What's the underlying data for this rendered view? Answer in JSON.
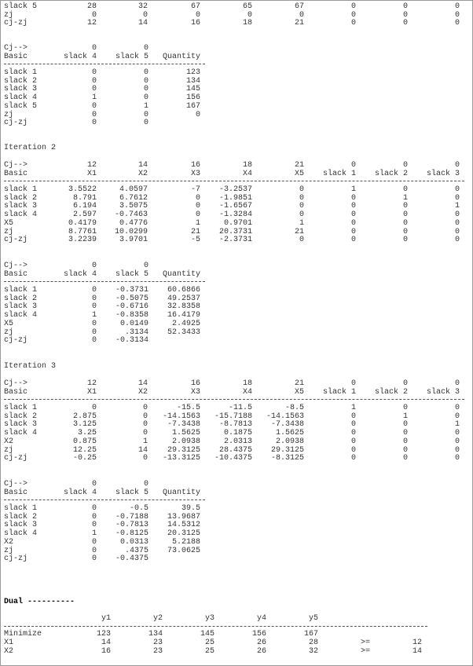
{
  "blocks": [
    {
      "body": [
        [
          "slack 5",
          "28",
          "32",
          "67",
          "65",
          "67",
          "0",
          "0",
          "0"
        ],
        [
          "zj",
          "0",
          "0",
          "0",
          "0",
          "0",
          "0",
          "0",
          "0"
        ],
        [
          "cj-zj",
          "12",
          "14",
          "16",
          "18",
          "21",
          "0",
          "0",
          "0"
        ]
      ]
    },
    {
      "header": [
        [
          "Cj-->",
          "0",
          "0"
        ],
        [
          "Basic",
          "slack 4",
          "slack 5",
          "Quantity"
        ]
      ],
      "body": [
        [
          "slack 1",
          "0",
          "0",
          "123"
        ],
        [
          "slack 2",
          "0",
          "0",
          "134"
        ],
        [
          "slack 3",
          "0",
          "0",
          "145"
        ],
        [
          "slack 4",
          "1",
          "0",
          "156"
        ],
        [
          "slack 5",
          "0",
          "1",
          "167"
        ],
        [
          "zj",
          "0",
          "0",
          "0"
        ],
        [
          "cj-zj",
          "0",
          "0"
        ]
      ]
    },
    {
      "heading": "Iteration 2"
    },
    {
      "header": [
        [
          "Cj-->",
          "12",
          "14",
          "16",
          "18",
          "21",
          "0",
          "0",
          "0"
        ],
        [
          "Basic",
          "X1",
          "X2",
          "X3",
          "X4",
          "X5",
          "slack 1",
          "slack 2",
          "slack 3"
        ]
      ],
      "body": [
        [
          "slack 1",
          "3.5522",
          "4.0597",
          "-7",
          "-3.2537",
          "0",
          "1",
          "0",
          "0"
        ],
        [
          "slack 2",
          "8.791",
          "6.7612",
          "0",
          "-1.9851",
          "0",
          "0",
          "1",
          "0"
        ],
        [
          "slack 3",
          "6.194",
          "3.5075",
          "0",
          "-1.6567",
          "0",
          "0",
          "0",
          "1"
        ],
        [
          "slack 4",
          "2.597",
          "-0.7463",
          "0",
          "-1.3284",
          "0",
          "0",
          "0",
          "0"
        ],
        [
          "X5",
          "0.4179",
          "0.4776",
          "1",
          "0.9701",
          "1",
          "0",
          "0",
          "0"
        ],
        [
          "zj",
          "8.7761",
          "10.0299",
          "21",
          "20.3731",
          "21",
          "0",
          "0",
          "0"
        ],
        [
          "cj-zj",
          "3.2239",
          "3.9701",
          "-5",
          "-2.3731",
          "0",
          "0",
          "0",
          "0"
        ]
      ]
    },
    {
      "header": [
        [
          "Cj-->",
          "0",
          "0"
        ],
        [
          "Basic",
          "slack 4",
          "slack 5",
          "Quantity"
        ]
      ],
      "body": [
        [
          "slack 1",
          "0",
          "-0.3731",
          "60.6866"
        ],
        [
          "slack 2",
          "0",
          "-0.5075",
          "49.2537"
        ],
        [
          "slack 3",
          "0",
          "-0.6716",
          "32.8358"
        ],
        [
          "slack 4",
          "1",
          "-0.8358",
          "16.4179"
        ],
        [
          "X5",
          "0",
          "0.0149",
          "2.4925"
        ],
        [
          "zj",
          "0",
          ".3134",
          "52.3433"
        ],
        [
          "cj-zj",
          "0",
          "-0.3134"
        ]
      ]
    },
    {
      "heading": "Iteration 3"
    },
    {
      "header": [
        [
          "Cj-->",
          "12",
          "14",
          "16",
          "18",
          "21",
          "0",
          "0",
          "0"
        ],
        [
          "Basic",
          "X1",
          "X2",
          "X3",
          "X4",
          "X5",
          "slack 1",
          "slack 2",
          "slack 3"
        ]
      ],
      "body": [
        [
          "slack 1",
          "0",
          "0",
          "-15.5",
          "-11.5",
          "-8.5",
          "1",
          "0",
          "0"
        ],
        [
          "slack 2",
          "2.875",
          "0",
          "-14.1563",
          "-15.7188",
          "-14.1563",
          "0",
          "1",
          "0"
        ],
        [
          "slack 3",
          "3.125",
          "0",
          "-7.3438",
          "-8.7813",
          "-7.3438",
          "0",
          "0",
          "1"
        ],
        [
          "slack 4",
          "3.25",
          "0",
          "1.5625",
          "0.1875",
          "1.5625",
          "0",
          "0",
          "0"
        ],
        [
          "X2",
          "0.875",
          "1",
          "2.0938",
          "2.0313",
          "2.0938",
          "0",
          "0",
          "0"
        ],
        [
          "zj",
          "12.25",
          "14",
          "29.3125",
          "28.4375",
          "29.3125",
          "0",
          "0",
          "0"
        ],
        [
          "cj-zj",
          "-0.25",
          "0",
          "-13.3125",
          "-10.4375",
          "-8.3125",
          "0",
          "0",
          "0"
        ]
      ]
    },
    {
      "header": [
        [
          "Cj-->",
          "0",
          "0"
        ],
        [
          "Basic",
          "slack 4",
          "slack 5",
          "Quantity"
        ]
      ],
      "body": [
        [
          "slack 1",
          "0",
          "-0.5",
          "39.5"
        ],
        [
          "slack 2",
          "0",
          "-0.7188",
          "13.9687"
        ],
        [
          "slack 3",
          "0",
          "-0.7813",
          "14.5312"
        ],
        [
          "slack 4",
          "1",
          "-0.8125",
          "20.3125"
        ],
        [
          "X2",
          "0",
          "0.0313",
          "5.2188"
        ],
        [
          "zj",
          "0",
          ".4375",
          "73.0625"
        ],
        [
          "cj-zj",
          "0",
          "-0.4375"
        ]
      ]
    },
    {
      "heading": "Dual ----------"
    },
    {
      "header": [
        [
          null,
          "y1",
          "y2",
          "y3",
          "y4",
          "y5"
        ]
      ],
      "body": [
        [
          "Minimize",
          "123",
          "134",
          "145",
          "156",
          "167"
        ],
        [
          "X1",
          "14",
          "23",
          "25",
          "26",
          "28",
          ">=",
          "12"
        ],
        [
          "X2",
          "16",
          "23",
          "25",
          "26",
          "32",
          ">=",
          "14"
        ]
      ]
    }
  ]
}
